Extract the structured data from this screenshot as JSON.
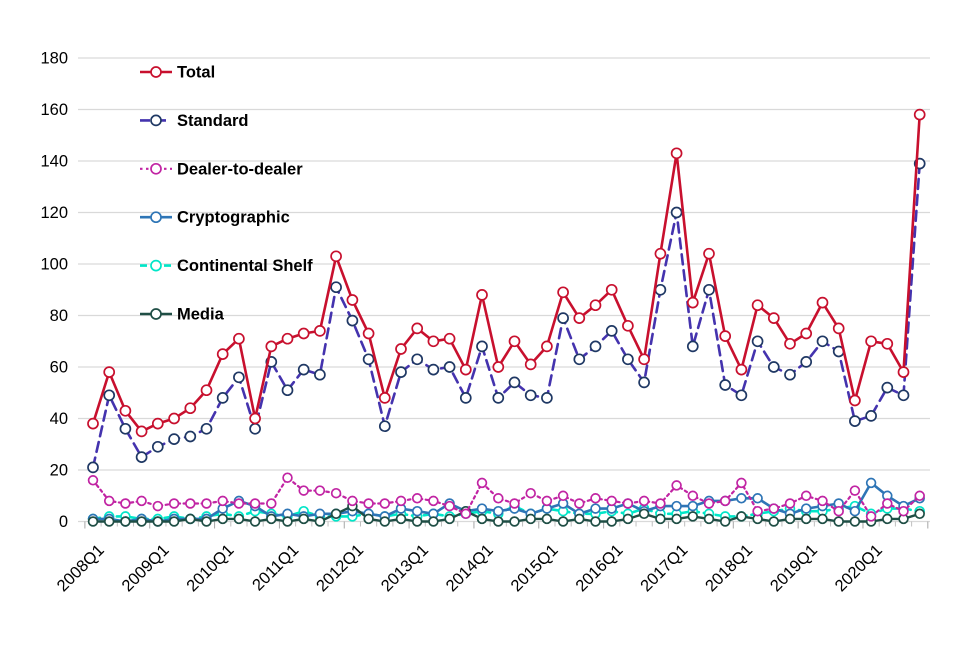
{
  "chart_data": {
    "type": "line",
    "title": "",
    "xlabel": "",
    "ylabel": "",
    "ylim": [
      0,
      180
    ],
    "y_tick_step": 20,
    "y_tick_labels": [
      "0",
      "20",
      "40",
      "60",
      "80",
      "100",
      "120",
      "140",
      "160",
      "180"
    ],
    "grid": "horizontal",
    "legend_position": "inside-top-left",
    "x": [
      "2008Q1",
      "2008Q2",
      "2008Q3",
      "2008Q4",
      "2009Q1",
      "2009Q2",
      "2009Q3",
      "2009Q4",
      "2010Q1",
      "2010Q2",
      "2010Q3",
      "2010Q4",
      "2011Q1",
      "2011Q2",
      "2011Q3",
      "2011Q4",
      "2012Q1",
      "2012Q2",
      "2012Q3",
      "2012Q4",
      "2013Q1",
      "2013Q2",
      "2013Q3",
      "2013Q4",
      "2014Q1",
      "2014Q2",
      "2014Q3",
      "2014Q4",
      "2015Q1",
      "2015Q2",
      "2015Q3",
      "2015Q4",
      "2016Q1",
      "2016Q2",
      "2016Q3",
      "2016Q4",
      "2017Q1",
      "2017Q2",
      "2017Q3",
      "2017Q4",
      "2018Q1",
      "2018Q2",
      "2018Q3",
      "2018Q4",
      "2019Q1",
      "2019Q2",
      "2019Q3",
      "2019Q4",
      "2020Q1",
      "2020Q2",
      "2020Q3",
      "2020Q4"
    ],
    "x_tick_labels_shown": [
      "2008Q1",
      "2009Q1",
      "2010Q1",
      "2011Q1",
      "2012Q1",
      "2013Q1",
      "2014Q1",
      "2015Q1",
      "2016Q1",
      "2017Q1",
      "2018Q1",
      "2019Q1",
      "2020Q1"
    ],
    "series": [
      {
        "name": "Total",
        "color": "#C8102E",
        "dash": "",
        "line_width": 2.6,
        "marker": "circle-open",
        "marker_color": "#C8102E",
        "values": [
          38,
          58,
          43,
          35,
          38,
          40,
          44,
          51,
          65,
          71,
          40,
          68,
          71,
          73,
          74,
          103,
          86,
          73,
          48,
          67,
          75,
          70,
          71,
          59,
          88,
          60,
          70,
          61,
          68,
          89,
          79,
          84,
          90,
          76,
          63,
          104,
          143,
          85,
          104,
          72,
          59,
          84,
          79,
          69,
          73,
          85,
          75,
          47,
          70,
          69,
          58,
          158
        ]
      },
      {
        "name": "Standard",
        "color": "#4433AE",
        "dash": "10 6",
        "line_width": 2.6,
        "marker": "circle-open",
        "marker_color": "#1F3864",
        "values": [
          21,
          49,
          36,
          25,
          29,
          32,
          33,
          36,
          48,
          56,
          36,
          62,
          51,
          59,
          57,
          91,
          78,
          63,
          37,
          58,
          63,
          59,
          60,
          48,
          68,
          48,
          54,
          49,
          48,
          79,
          63,
          68,
          74,
          63,
          54,
          90,
          120,
          68,
          90,
          53,
          49,
          70,
          60,
          57,
          62,
          70,
          66,
          39,
          41,
          52,
          49,
          139
        ]
      },
      {
        "name": "Dealer-to-dealer",
        "color": "#C124A3",
        "dash": "2.5 3.5",
        "line_width": 2.2,
        "marker": "circle-open",
        "marker_color": "#C124A3",
        "values": [
          16,
          8,
          7,
          8,
          6,
          7,
          7,
          7,
          8,
          7,
          7,
          7,
          17,
          12,
          12,
          11,
          8,
          7,
          7,
          8,
          9,
          8,
          6,
          3,
          15,
          9,
          7,
          11,
          8,
          10,
          7,
          9,
          8,
          7,
          8,
          7,
          14,
          10,
          7,
          8,
          15,
          4,
          5,
          7,
          10,
          8,
          4,
          12,
          2,
          7,
          4,
          10
        ]
      },
      {
        "name": "Cryptographic",
        "color": "#2E75B6",
        "dash": "",
        "line_width": 2.6,
        "marker": "circle-open",
        "marker_color": "#2E75B6",
        "values": [
          1,
          1,
          0,
          1,
          0,
          1,
          1,
          1,
          5,
          8,
          6,
          2,
          3,
          2,
          3,
          3,
          4,
          3,
          2,
          5,
          4,
          3,
          7,
          4,
          5,
          4,
          5,
          3,
          5,
          7,
          3,
          5,
          5,
          7,
          4,
          6,
          6,
          6,
          8,
          8,
          9,
          9,
          5,
          3,
          5,
          6,
          7,
          4,
          15,
          10,
          6,
          9
        ]
      },
      {
        "name": "Continental Shelf",
        "color": "#00E6C8",
        "dash": "7 5",
        "line_width": 2.6,
        "marker": "circle-open",
        "marker_color": "#00E6C8",
        "values": [
          1,
          2,
          2,
          1,
          1,
          2,
          1,
          2,
          3,
          2,
          4,
          3,
          2,
          4,
          2,
          2,
          2,
          3,
          2,
          3,
          2,
          3,
          2,
          3,
          4,
          3,
          6,
          3,
          5,
          4,
          3,
          3,
          4,
          3,
          5,
          3,
          3,
          4,
          3,
          2,
          2,
          3,
          4,
          5,
          4,
          4,
          5,
          6,
          3,
          5,
          5,
          4
        ]
      },
      {
        "name": "Media",
        "color": "#1F4E45",
        "dash": "",
        "line_width": 2.4,
        "marker": "circle-open",
        "marker_color": "#1F4E45",
        "values": [
          0,
          0,
          0,
          0,
          0,
          0,
          1,
          0,
          1,
          1,
          0,
          1,
          0,
          1,
          0,
          3,
          6,
          1,
          0,
          1,
          0,
          0,
          1,
          4,
          1,
          0,
          0,
          1,
          1,
          0,
          1,
          0,
          0,
          1,
          3,
          1,
          1,
          2,
          1,
          0,
          2,
          1,
          0,
          1,
          1,
          1,
          0,
          0,
          0,
          1,
          1,
          3
        ]
      }
    ],
    "colors": {
      "gridline": "#D9D9D9",
      "tick": "#BFBFBF",
      "axis_text": "#000000",
      "legend_text": "#000000",
      "background": "#FFFFFF"
    }
  }
}
